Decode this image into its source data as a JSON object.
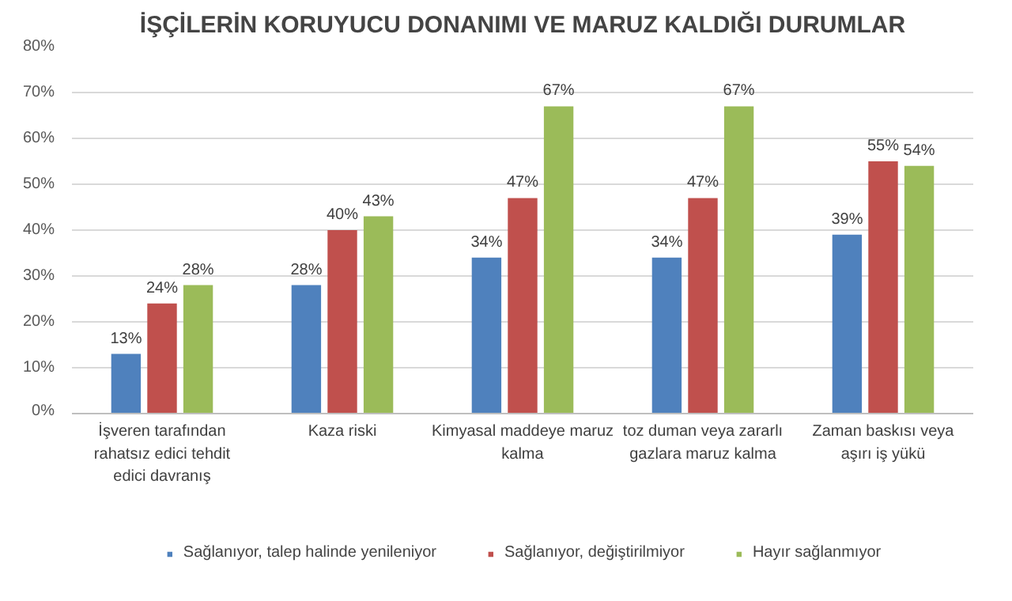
{
  "chart_data": {
    "type": "bar",
    "title": "İŞÇİLERİN KORUYUCU DONANIMI VE MARUZ KALDIĞI DURUMLAR",
    "categories": [
      "İşveren tarafından rahatsız edici tehdit edici davranış",
      "Kaza riski",
      "Kimyasal maddeye maruz kalma",
      "toz duman veya zararlı gazlara maruz kalma",
      "Zaman baskısı veya aşırı iş yükü"
    ],
    "series": [
      {
        "name": "Sağlanıyor, talep halinde yenileniyor",
        "color": "#4f81bd",
        "values": [
          13,
          28,
          34,
          34,
          39
        ],
        "value_labels": [
          "13%",
          "28%",
          "34%",
          "34%",
          "39%"
        ]
      },
      {
        "name": "Sağlanıyor, değiştirilmiyor",
        "color": "#c0504d",
        "values": [
          24,
          40,
          47,
          47,
          55
        ],
        "value_labels": [
          "24%",
          "40%",
          "47%",
          "47%",
          "55%"
        ]
      },
      {
        "name": "Hayır sağlanmıyor",
        "color": "#9bbb59",
        "values": [
          28,
          43,
          67,
          67,
          54
        ],
        "value_labels": [
          "28%",
          "43%",
          "67%",
          "67%",
          "54%"
        ]
      }
    ],
    "ylim": [
      0,
      80
    ],
    "yticks": [
      {
        "value": 0,
        "label": "0%"
      },
      {
        "value": 10,
        "label": "10%"
      },
      {
        "value": 20,
        "label": "20%"
      },
      {
        "value": 30,
        "label": "30%"
      },
      {
        "value": 40,
        "label": "40%"
      },
      {
        "value": 50,
        "label": "50%"
      },
      {
        "value": 60,
        "label": "60%"
      },
      {
        "value": 70,
        "label": "70%"
      },
      {
        "value": 80,
        "label": "80%"
      }
    ],
    "grid": "y",
    "legend": "bottom"
  }
}
